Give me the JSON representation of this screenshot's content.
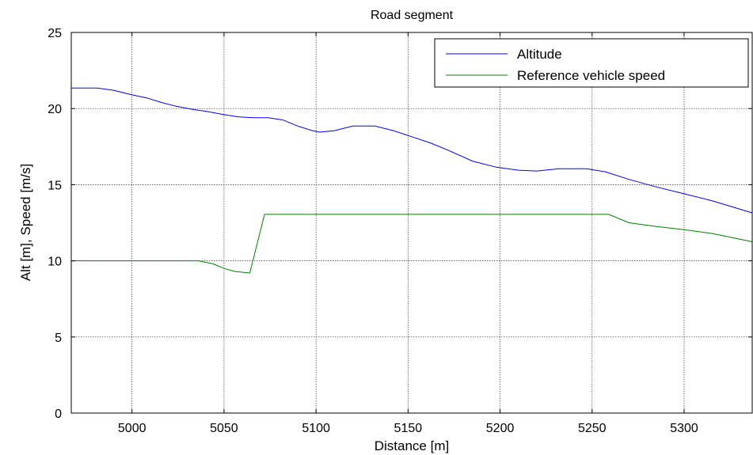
{
  "chart_data": {
    "type": "line",
    "title": "Road segment",
    "xlabel": "Distance [m]",
    "ylabel": "Alt [m], Speed [m/s]",
    "xlim": [
      4967,
      5337
    ],
    "ylim": [
      0,
      25
    ],
    "xticks": [
      5000,
      5050,
      5100,
      5150,
      5200,
      5250,
      5300
    ],
    "yticks": [
      0,
      5,
      10,
      15,
      20,
      25
    ],
    "grid": true,
    "legend_position": "top-right",
    "series": [
      {
        "name": "Altitude",
        "color": "#0000ff",
        "x": [
          4967,
          4981,
          4990,
          5000,
          5008,
          5016,
          5024,
          5033,
          5041,
          5050,
          5058,
          5066,
          5074,
          5082,
          5090,
          5098,
          5102,
          5110,
          5120,
          5132,
          5142,
          5152,
          5162,
          5172,
          5185,
          5198,
          5210,
          5220,
          5232,
          5247,
          5257,
          5270,
          5285,
          5300,
          5315,
          5337
        ],
        "y": [
          21.35,
          21.35,
          21.2,
          20.9,
          20.7,
          20.4,
          20.15,
          19.95,
          19.8,
          19.6,
          19.45,
          19.4,
          19.4,
          19.25,
          18.85,
          18.55,
          18.45,
          18.55,
          18.85,
          18.85,
          18.55,
          18.15,
          17.75,
          17.25,
          16.55,
          16.15,
          15.95,
          15.9,
          16.05,
          16.05,
          15.85,
          15.35,
          14.85,
          14.4,
          13.95,
          13.15
        ]
      },
      {
        "name": "Reference vehicle speed",
        "color": "#008000",
        "x": [
          4967,
          5000,
          5033,
          5036,
          5044,
          5050,
          5056,
          5064,
          5072,
          5100,
          5150,
          5200,
          5259,
          5270,
          5285,
          5300,
          5315,
          5325,
          5337
        ],
        "y": [
          10,
          10,
          10,
          10,
          9.8,
          9.5,
          9.3,
          9.2,
          13.05,
          13.05,
          13.05,
          13.05,
          13.05,
          12.5,
          12.25,
          12.05,
          11.8,
          11.55,
          11.25
        ]
      }
    ]
  }
}
